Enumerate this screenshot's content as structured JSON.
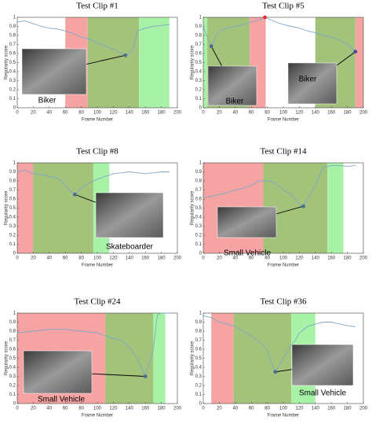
{
  "chart_data": [
    {
      "type": "line",
      "title": "Test Clip #1",
      "xlabel": "Frame Number",
      "ylabel": "Regularity score",
      "xlim": [
        0,
        200
      ],
      "ylim": [
        0,
        1
      ],
      "xticks": [
        0,
        20,
        40,
        60,
        80,
        100,
        120,
        140,
        160,
        180,
        200
      ],
      "yticks": [
        0,
        0.1,
        0.2,
        0.3,
        0.4,
        0.5,
        0.6,
        0.7,
        0.8,
        0.9,
        1
      ],
      "regions": [
        {
          "start": 60,
          "end": 88,
          "color": "#f5a3a3"
        },
        {
          "start": 88,
          "end": 152,
          "color": "#a3c27a"
        },
        {
          "start": 152,
          "end": 190,
          "color": "#a8f2a8"
        }
      ],
      "series": [
        {
          "color": "#7fa8c8",
          "x": [
            0,
            10,
            20,
            30,
            40,
            50,
            60,
            70,
            80,
            90,
            100,
            110,
            120,
            130,
            135,
            140,
            145,
            150,
            160,
            170,
            180,
            190
          ],
          "values": [
            0.95,
            0.96,
            0.93,
            0.9,
            0.88,
            0.87,
            0.85,
            0.82,
            0.78,
            0.76,
            0.72,
            0.68,
            0.65,
            0.6,
            0.58,
            0.6,
            0.66,
            0.85,
            0.88,
            0.9,
            0.91,
            0.92
          ]
        }
      ],
      "markers": [
        {
          "x": 135,
          "y": 0.58,
          "color": "#4a6e8e"
        }
      ],
      "captions": [
        "Biker"
      ]
    },
    {
      "type": "line",
      "title": "Test Clip #5",
      "xlabel": "Frame Number",
      "ylabel": "Regularity score",
      "xlim": [
        0,
        200
      ],
      "ylim": [
        0,
        1
      ],
      "xticks": [
        0,
        20,
        40,
        60,
        80,
        100,
        120,
        140,
        160,
        180,
        200
      ],
      "yticks": [
        0,
        0.1,
        0.2,
        0.3,
        0.4,
        0.5,
        0.6,
        0.7,
        0.8,
        0.9,
        1
      ],
      "regions": [
        {
          "start": 0,
          "end": 5,
          "color": "#a8f2a8"
        },
        {
          "start": 5,
          "end": 58,
          "color": "#a3c27a"
        },
        {
          "start": 58,
          "end": 78,
          "color": "#f5a3a3"
        },
        {
          "start": 140,
          "end": 190,
          "color": "#a3c27a"
        },
        {
          "start": 190,
          "end": 200,
          "color": "#f5a3a3"
        }
      ],
      "series": [
        {
          "color": "#7fa8c8",
          "x": [
            0,
            5,
            10,
            15,
            20,
            30,
            40,
            50,
            60,
            70,
            77,
            90,
            100,
            110,
            120,
            130,
            140,
            150,
            160,
            170,
            180,
            190
          ],
          "values": [
            0.9,
            0.78,
            0.68,
            0.78,
            0.85,
            0.88,
            0.9,
            0.92,
            0.95,
            0.97,
            1,
            0.95,
            0.92,
            0.9,
            0.88,
            0.85,
            0.83,
            0.8,
            0.78,
            0.75,
            0.7,
            0.62
          ]
        }
      ],
      "markers": [
        {
          "x": 10,
          "y": 0.68,
          "color": "#4a6e8e"
        },
        {
          "x": 77,
          "y": 1,
          "color": "#e03030"
        },
        {
          "x": 190,
          "y": 0.62,
          "color": "#4a4a9e"
        }
      ],
      "captions": [
        "Biker",
        "Biker"
      ]
    },
    {
      "type": "line",
      "title": "Test Clip #8",
      "xlabel": "Frame Number",
      "ylabel": "Regularity score",
      "xlim": [
        0,
        200
      ],
      "ylim": [
        0,
        1
      ],
      "xticks": [
        0,
        20,
        40,
        60,
        80,
        100,
        120,
        140,
        160,
        180,
        200
      ],
      "yticks": [
        0,
        0.1,
        0.2,
        0.3,
        0.4,
        0.5,
        0.6,
        0.7,
        0.8,
        0.9,
        1
      ],
      "regions": [
        {
          "start": 0,
          "end": 20,
          "color": "#f5a3a3"
        },
        {
          "start": 20,
          "end": 95,
          "color": "#a3c27a"
        },
        {
          "start": 95,
          "end": 115,
          "color": "#a8f2a8"
        }
      ],
      "series": [
        {
          "color": "#7fa8c8",
          "x": [
            0,
            10,
            20,
            30,
            40,
            50,
            55,
            60,
            65,
            72,
            80,
            90,
            100,
            110,
            120,
            130,
            140,
            150,
            160,
            170,
            180,
            190
          ],
          "values": [
            0.9,
            0.92,
            0.88,
            0.87,
            0.85,
            0.83,
            0.8,
            0.75,
            0.7,
            0.65,
            0.72,
            0.78,
            0.82,
            0.85,
            0.88,
            0.89,
            0.9,
            0.89,
            0.88,
            0.89,
            0.9,
            0.9
          ]
        }
      ],
      "markers": [
        {
          "x": 72,
          "y": 0.65,
          "color": "#4a6e8e"
        }
      ],
      "captions": [
        "Skateboarder"
      ]
    },
    {
      "type": "line",
      "title": "Test Clip #14",
      "xlabel": "Frame Number",
      "ylabel": "Regularity score",
      "xlim": [
        0,
        200
      ],
      "ylim": [
        0,
        1
      ],
      "xticks": [
        0,
        20,
        40,
        60,
        80,
        100,
        120,
        140,
        160,
        180,
        200
      ],
      "yticks": [
        0,
        0.1,
        0.2,
        0.3,
        0.4,
        0.5,
        0.6,
        0.7,
        0.8,
        0.9,
        1
      ],
      "regions": [
        {
          "start": 0,
          "end": 75,
          "color": "#f5a3a3"
        },
        {
          "start": 75,
          "end": 155,
          "color": "#a3c27a"
        },
        {
          "start": 155,
          "end": 175,
          "color": "#a8f2a8"
        }
      ],
      "series": [
        {
          "color": "#7fa8c8",
          "x": [
            0,
            10,
            20,
            30,
            40,
            50,
            60,
            70,
            80,
            90,
            100,
            110,
            115,
            120,
            125,
            130,
            140,
            150,
            160,
            170,
            180,
            190
          ],
          "values": [
            0.62,
            0.63,
            0.65,
            0.67,
            0.7,
            0.72,
            0.75,
            0.8,
            0.8,
            0.78,
            0.7,
            0.65,
            0.6,
            0.55,
            0.52,
            0.6,
            0.75,
            0.95,
            0.97,
            0.97,
            0.96,
            0.97
          ]
        }
      ],
      "markers": [
        {
          "x": 125,
          "y": 0.52,
          "color": "#4a6e8e"
        }
      ],
      "captions": [
        "Small Vehicle"
      ]
    },
    {
      "type": "line",
      "title": "Test Clip #24",
      "xlabel": "Frame Number",
      "ylabel": "Regularity score",
      "xlim": [
        0,
        200
      ],
      "ylim": [
        0,
        1
      ],
      "xticks": [
        0,
        20,
        40,
        60,
        80,
        100,
        120,
        140,
        160,
        180,
        200
      ],
      "yticks": [
        0,
        0.1,
        0.2,
        0.3,
        0.4,
        0.5,
        0.6,
        0.7,
        0.8,
        0.9,
        1
      ],
      "regions": [
        {
          "start": 0,
          "end": 110,
          "color": "#f5a3a3"
        },
        {
          "start": 110,
          "end": 170,
          "color": "#a3c27a"
        },
        {
          "start": 170,
          "end": 185,
          "color": "#a8f2a8"
        }
      ],
      "series": [
        {
          "color": "#7fa8c8",
          "x": [
            0,
            10,
            20,
            30,
            40,
            50,
            60,
            70,
            80,
            90,
            100,
            110,
            120,
            130,
            140,
            150,
            160,
            165,
            170,
            175,
            180,
            190
          ],
          "values": [
            0.78,
            0.79,
            0.8,
            0.81,
            0.82,
            0.82,
            0.82,
            0.81,
            0.8,
            0.79,
            0.78,
            0.75,
            0.72,
            0.7,
            0.62,
            0.5,
            0.3,
            0.45,
            0.6,
            0.98,
            1,
            1
          ]
        }
      ],
      "markers": [
        {
          "x": 160,
          "y": 0.3,
          "color": "#4a6e8e"
        }
      ],
      "captions": [
        "Small Vehicle"
      ]
    },
    {
      "type": "line",
      "title": "Test Clip #36",
      "xlabel": "Frame Number",
      "ylabel": "Regularity score",
      "xlim": [
        0,
        200
      ],
      "ylim": [
        0,
        1
      ],
      "xticks": [
        0,
        20,
        40,
        60,
        80,
        100,
        120,
        140,
        160,
        180,
        200
      ],
      "yticks": [
        0,
        0.1,
        0.2,
        0.3,
        0.4,
        0.5,
        0.6,
        0.7,
        0.8,
        0.9,
        1
      ],
      "regions": [
        {
          "start": 10,
          "end": 38,
          "color": "#f5a3a3"
        },
        {
          "start": 38,
          "end": 110,
          "color": "#a3c27a"
        },
        {
          "start": 110,
          "end": 140,
          "color": "#a8f2a8"
        }
      ],
      "series": [
        {
          "color": "#7fa8c8",
          "x": [
            0,
            10,
            20,
            30,
            40,
            50,
            60,
            70,
            80,
            85,
            90,
            95,
            100,
            110,
            115,
            120,
            130,
            140,
            150,
            160,
            170,
            180,
            190
          ],
          "values": [
            0.97,
            0.95,
            0.9,
            0.88,
            0.85,
            0.8,
            0.75,
            0.68,
            0.6,
            0.45,
            0.35,
            0.42,
            0.5,
            0.65,
            0.7,
            0.78,
            0.85,
            0.88,
            0.9,
            0.9,
            0.88,
            0.86,
            0.85
          ]
        }
      ],
      "markers": [
        {
          "x": 90,
          "y": 0.35,
          "color": "#4a6e8e"
        }
      ],
      "captions": [
        "Small Vehicle"
      ]
    }
  ]
}
